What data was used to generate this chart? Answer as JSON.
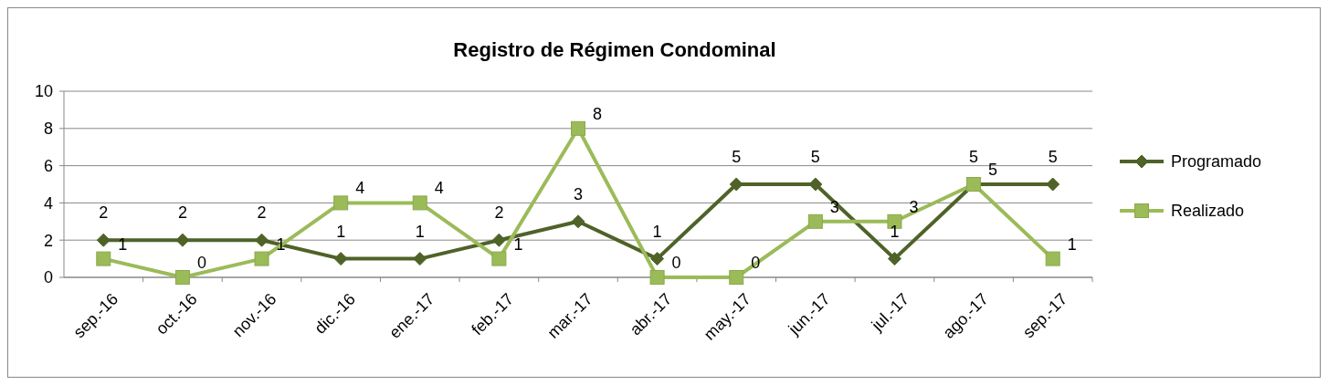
{
  "chart_data": {
    "type": "line",
    "title": "Registro de Régimen Condominal",
    "categories": [
      "sep.-16",
      "oct.-16",
      "nov.-16",
      "dic.-16",
      "ene.-17",
      "feb.-17",
      "mar.-17",
      "abr.-17",
      "may.-17",
      "jun.-17",
      "jul.-17",
      "ago.-17",
      "sep.-17"
    ],
    "series": [
      {
        "name": "Programado",
        "color": "#4f6228",
        "marker": "diamond",
        "values": [
          2,
          2,
          2,
          1,
          1,
          2,
          3,
          1,
          5,
          5,
          1,
          5,
          5
        ]
      },
      {
        "name": "Realizado",
        "color": "#9bbb59",
        "marker": "square",
        "values": [
          1,
          0,
          1,
          4,
          4,
          1,
          8,
          0,
          0,
          3,
          3,
          5,
          1
        ]
      }
    ],
    "ylim": [
      0,
      10
    ],
    "yticks": [
      0,
      2,
      4,
      6,
      8,
      10
    ],
    "grid": "y",
    "legend": "right",
    "data_labels": true
  }
}
